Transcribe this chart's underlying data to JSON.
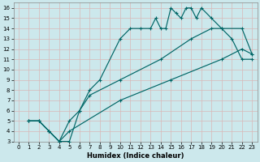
{
  "xlabel": "Humidex (Indice chaleur)",
  "bg_color": "#cce8ec",
  "grid_color": "#b0d4d8",
  "line_color": "#006666",
  "xlim": [
    -0.5,
    23.5
  ],
  "ylim": [
    3,
    16.5
  ],
  "xticks": [
    0,
    1,
    2,
    3,
    4,
    5,
    6,
    7,
    8,
    9,
    10,
    11,
    12,
    13,
    14,
    15,
    16,
    17,
    18,
    19,
    20,
    21,
    22,
    23
  ],
  "yticks": [
    3,
    4,
    5,
    6,
    7,
    8,
    9,
    10,
    11,
    12,
    13,
    14,
    15,
    16
  ],
  "curve_main_x": [
    1,
    2,
    3,
    4,
    5,
    6,
    7,
    8,
    10,
    11,
    12,
    13,
    13.5,
    14,
    14.5,
    15,
    15.5,
    16,
    16.5,
    17,
    17.5,
    18,
    19,
    20,
    21,
    22,
    23
  ],
  "curve_main_y": [
    5,
    5,
    4,
    3,
    3,
    6,
    8,
    9,
    13,
    14,
    14,
    14,
    15,
    14,
    14,
    16,
    15.5,
    15,
    16,
    16,
    15,
    16,
    15,
    14,
    13,
    11,
    11
  ],
  "curve_upper_x": [
    1,
    2,
    3,
    4,
    5,
    6,
    7,
    10,
    14,
    17,
    19,
    20,
    22,
    23
  ],
  "curve_upper_y": [
    5,
    5,
    4,
    3,
    5,
    6,
    7.5,
    9,
    11,
    13,
    14,
    14,
    14,
    11.5
  ],
  "curve_lower_x": [
    1,
    2,
    3,
    4,
    5,
    10,
    15,
    20,
    22,
    23
  ],
  "curve_lower_y": [
    5,
    5,
    4,
    3,
    4,
    7,
    9,
    11,
    12,
    11.5
  ]
}
